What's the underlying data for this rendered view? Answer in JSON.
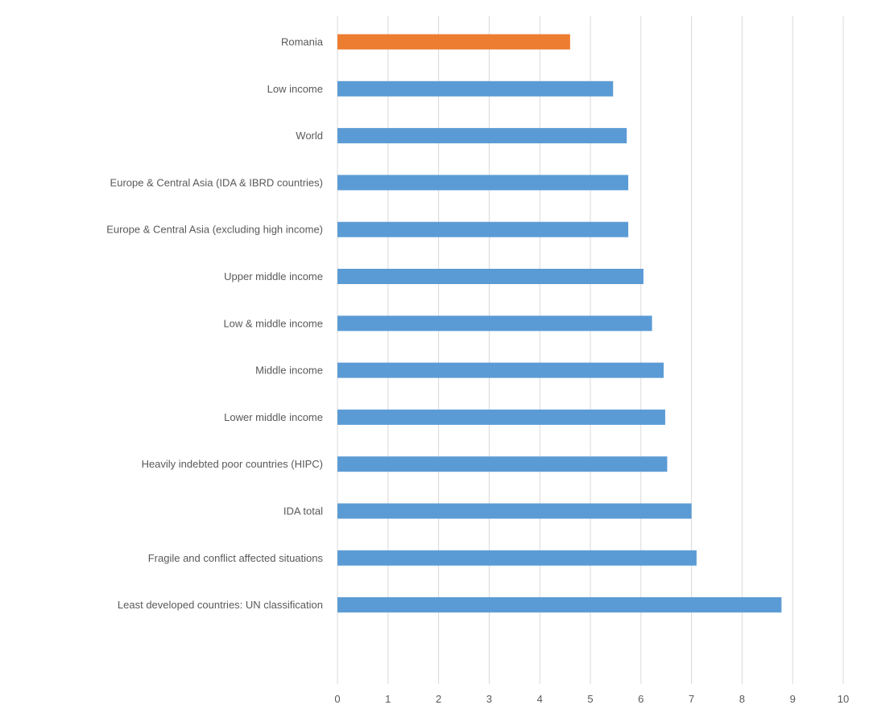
{
  "chart_data": {
    "type": "bar",
    "orientation": "horizontal",
    "categories": [
      "Romania",
      "Low income",
      "World",
      "Europe & Central Asia (IDA & IBRD countries)",
      "Europe & Central Asia (excluding high income)",
      "Upper middle income",
      "Low & middle income",
      "Middle income",
      "Lower middle income",
      "Heavily indebted poor countries (HIPC)",
      "IDA total",
      "Fragile and conflict affected situations",
      "Least developed countries: UN classification"
    ],
    "values": [
      4.6,
      5.45,
      5.72,
      5.75,
      5.75,
      6.05,
      6.22,
      6.45,
      6.48,
      6.52,
      7.0,
      7.1,
      8.78
    ],
    "highlight_index": 0,
    "colors": {
      "default": "#5b9bd5",
      "highlight": "#ed7d31"
    },
    "xlim": [
      0,
      10
    ],
    "x_ticks": [
      0,
      1,
      2,
      3,
      4,
      5,
      6,
      7,
      8,
      9,
      10
    ],
    "grid": "vertical",
    "legend": "none"
  }
}
